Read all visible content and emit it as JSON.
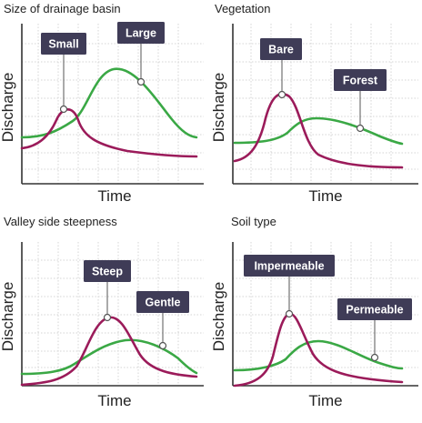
{
  "colors": {
    "green": "#3aa845",
    "magenta": "#9b1b5a",
    "callout": "#3f3c57",
    "axis": "#333333",
    "grid": "#d4d4d4"
  },
  "common": {
    "x_label": "Time",
    "y_label": "Discharge"
  },
  "panels": [
    {
      "title": "Size of drainage basin",
      "callouts": [
        {
          "label": "Small",
          "series": "magenta"
        },
        {
          "label": "Large",
          "series": "green"
        }
      ]
    },
    {
      "title": "Vegetation",
      "callouts": [
        {
          "label": "Bare",
          "series": "magenta"
        },
        {
          "label": "Forest",
          "series": "green"
        }
      ]
    },
    {
      "title": "Valley side steepness",
      "callouts": [
        {
          "label": "Steep",
          "series": "magenta"
        },
        {
          "label": "Gentle",
          "series": "green"
        }
      ]
    },
    {
      "title": "Soil type",
      "callouts": [
        {
          "label": "Impermeable",
          "series": "magenta"
        },
        {
          "label": "Permeable",
          "series": "green"
        }
      ]
    }
  ]
}
